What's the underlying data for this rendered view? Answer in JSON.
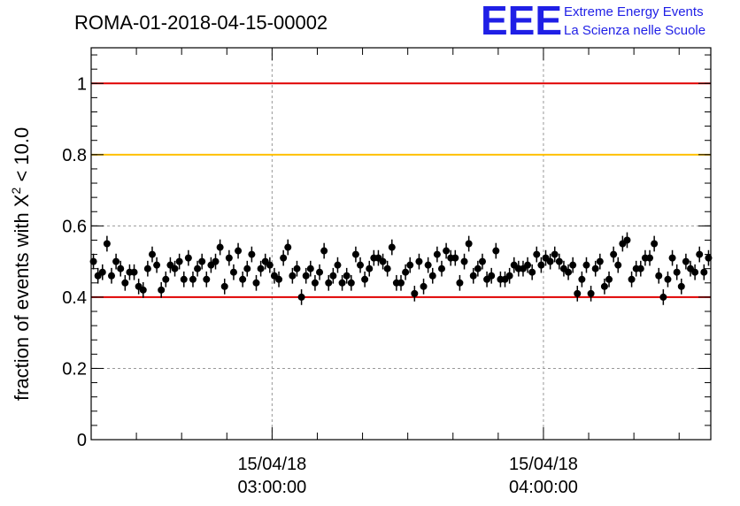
{
  "chart_data": {
    "type": "scatter",
    "title": "ROMA-01-2018-04-15-00002",
    "ylabel_main": "fraction of events with X",
    "ylabel_sup": "2",
    "ylabel_tail": " < 10.0",
    "xlabel": "",
    "x_unit": "minutes after 15/04/18 02:20:00",
    "ylim": [
      0,
      1.1
    ],
    "yticks": [
      0,
      0.2,
      0.4,
      0.6,
      0.8,
      1
    ],
    "ytick_labels": [
      "0",
      "0.2",
      "0.4",
      "0.6",
      "0.8",
      "1"
    ],
    "xlim": [
      0,
      137
    ],
    "xticks_major": [
      {
        "x": 40,
        "line1": "15/04/18",
        "line2": "03:00:00"
      },
      {
        "x": 100,
        "line1": "15/04/18",
        "line2": "04:00:00"
      }
    ],
    "grid": true,
    "reference_lines": [
      {
        "y": 1.0,
        "color": "#e00000"
      },
      {
        "y": 0.8,
        "color": "#ffc000"
      },
      {
        "y": 0.4,
        "color": "#e00000"
      }
    ],
    "error_bar_halfwidth": 0.022,
    "marker_color": "#000000",
    "series": [
      {
        "x": [
          0.5,
          1.5,
          2.5,
          3.5,
          4.5,
          5.5,
          6.5,
          7.5,
          8.5,
          9.5,
          10.5,
          11.5,
          12.5,
          13.5,
          14.5,
          15.5,
          16.5,
          17.5,
          18.5,
          19.5,
          20.5,
          21.5,
          22.5,
          23.5,
          24.5,
          25.5,
          26.5,
          27.5,
          28.5,
          29.5,
          30.5,
          31.5,
          32.5,
          33.5,
          34.5,
          35.5,
          36.5,
          37.5,
          38.5,
          39.5,
          40.5,
          41.5,
          42.5,
          43.5,
          44.5,
          45.5,
          46.5,
          47.5,
          48.5,
          49.5,
          50.5,
          51.5,
          52.5,
          53.5,
          54.5,
          55.5,
          56.5,
          57.5,
          58.5,
          59.5,
          60.5,
          61.5,
          62.5,
          63.5,
          64.5,
          65.5,
          66.5,
          67.5,
          68.5,
          69.5,
          70.5,
          71.5,
          72.5,
          73.5,
          74.5,
          75.5,
          76.5,
          77.5,
          78.5,
          79.5,
          80.5,
          81.5,
          82.5,
          83.5,
          84.5,
          85.5,
          86.5,
          87.5,
          88.5,
          89.5,
          90.5,
          91.5,
          92.5,
          93.5,
          94.5,
          95.5,
          96.5,
          97.5,
          98.5,
          99.5,
          100.5,
          101.5,
          102.5,
          103.5,
          104.5,
          105.5,
          106.5,
          107.5,
          108.5,
          109.5,
          110.5,
          111.5,
          112.5,
          113.5,
          114.5,
          115.5,
          116.5,
          117.5,
          118.5,
          119.5,
          120.5,
          121.5,
          122.5,
          123.5,
          124.5,
          125.5,
          126.5,
          127.5,
          128.5,
          129.5,
          130.5,
          131.5,
          132.5,
          133.5,
          134.5,
          135.5,
          136.5
        ],
        "y": [
          0.5,
          0.46,
          0.47,
          0.55,
          0.46,
          0.5,
          0.48,
          0.44,
          0.47,
          0.47,
          0.43,
          0.42,
          0.48,
          0.52,
          0.49,
          0.42,
          0.45,
          0.49,
          0.48,
          0.5,
          0.45,
          0.51,
          0.45,
          0.48,
          0.5,
          0.45,
          0.49,
          0.5,
          0.54,
          0.43,
          0.51,
          0.47,
          0.53,
          0.45,
          0.48,
          0.52,
          0.44,
          0.48,
          0.5,
          0.49,
          0.46,
          0.45,
          0.51,
          0.54,
          0.46,
          0.48,
          0.4,
          0.46,
          0.48,
          0.44,
          0.47,
          0.53,
          0.44,
          0.46,
          0.49,
          0.44,
          0.46,
          0.44,
          0.52,
          0.49,
          0.45,
          0.48,
          0.51,
          0.51,
          0.5,
          0.48,
          0.54,
          0.44,
          0.44,
          0.47,
          0.49,
          0.41,
          0.5,
          0.43,
          0.49,
          0.46,
          0.52,
          0.48,
          0.53,
          0.51,
          0.51,
          0.44,
          0.5,
          0.55,
          0.46,
          0.48,
          0.5,
          0.45,
          0.46,
          0.53,
          0.45,
          0.45,
          0.46,
          0.49,
          0.48,
          0.48,
          0.49,
          0.47,
          0.52,
          0.49,
          0.51,
          0.5,
          0.52,
          0.5,
          0.48,
          0.47,
          0.49,
          0.41,
          0.45,
          0.49,
          0.41,
          0.48,
          0.5,
          0.43,
          0.45,
          0.52,
          0.49,
          0.55,
          0.56,
          0.45,
          0.48,
          0.48,
          0.51,
          0.51,
          0.55,
          0.46,
          0.4,
          0.45,
          0.51,
          0.47,
          0.43,
          0.5,
          0.48,
          0.47,
          0.52,
          0.47,
          0.51
        ]
      }
    ]
  },
  "logo": {
    "letters": "EEE",
    "line1": "Extreme Energy Events",
    "line2": "La Scienza nelle Scuole",
    "color": "#1f1fe6"
  }
}
